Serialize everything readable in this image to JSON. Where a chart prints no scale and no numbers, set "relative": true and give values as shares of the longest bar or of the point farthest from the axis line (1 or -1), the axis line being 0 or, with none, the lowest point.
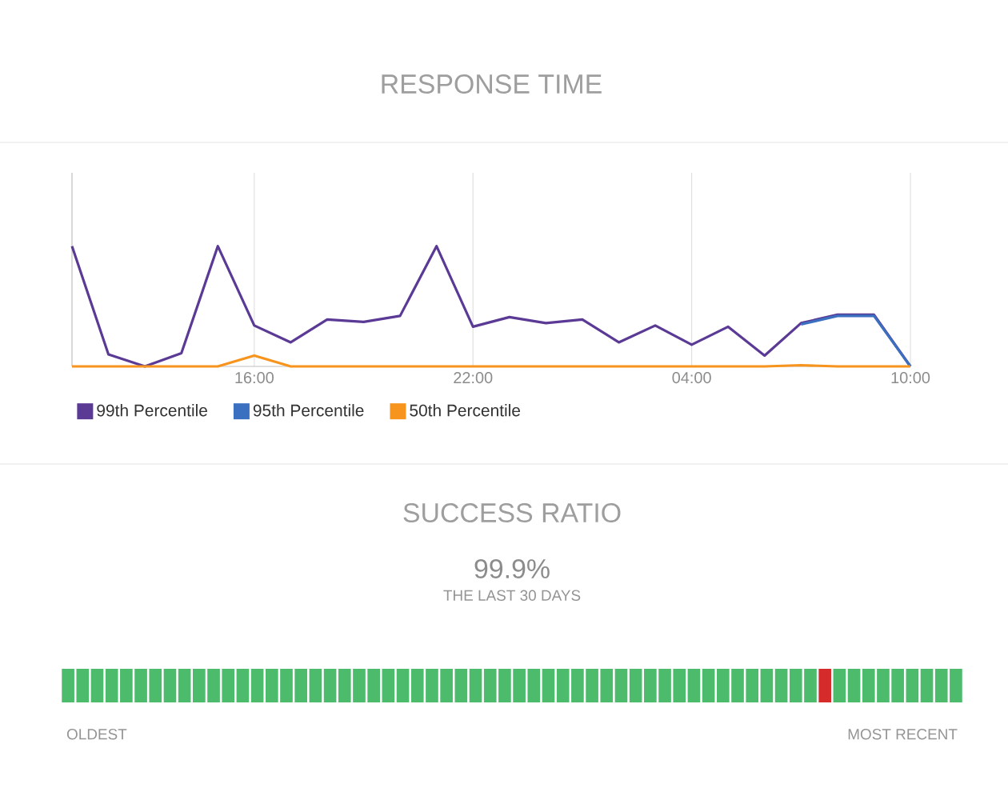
{
  "chart_data": [
    {
      "type": "line",
      "title": "RESPONSE TIME",
      "relative": true,
      "categories": [
        null,
        null,
        null,
        null,
        null,
        "16:00",
        null,
        null,
        null,
        null,
        null,
        "22:00",
        null,
        null,
        null,
        null,
        null,
        "04:00",
        null,
        null,
        null,
        null,
        null,
        "10:00"
      ],
      "tick_labels": "x",
      "grid": "x",
      "legend": "bottom",
      "series": [
        {
          "name": "99th Percentile",
          "color": "#5b3a96",
          "values": [
            1.0,
            0.1,
            0,
            0.11,
            1.0,
            0.34,
            0.2,
            0.39,
            0.37,
            0.42,
            1.0,
            0.33,
            0.41,
            0.36,
            0.39,
            0.2,
            0.34,
            0.18,
            0.33,
            0.09,
            0.36,
            0.43,
            0.43,
            0
          ]
        },
        {
          "name": "95th Percentile",
          "color": "#3b6fc0",
          "values": [
            null,
            null,
            null,
            null,
            null,
            null,
            null,
            null,
            null,
            null,
            null,
            null,
            null,
            null,
            null,
            null,
            null,
            null,
            null,
            null,
            0.35,
            0.42,
            0.42,
            0
          ]
        },
        {
          "name": "50th Percentile",
          "color": "#f7941d",
          "values": [
            0,
            0,
            0,
            0,
            0,
            0.09,
            0,
            0,
            0,
            0,
            0,
            0,
            0,
            0,
            0,
            0,
            0,
            0,
            0,
            0,
            0.01,
            0,
            0,
            0
          ]
        }
      ]
    },
    {
      "type": "bar",
      "title": "SUCCESS RATIO",
      "subtitle": "99.9%",
      "relative": true,
      "tick_labels": false,
      "annotations": [
        "THE LAST 30 DAYS",
        "OLDEST",
        "MOST RECENT"
      ],
      "categories": [
        null,
        null,
        null,
        null,
        null,
        null,
        null,
        null,
        null,
        null,
        null,
        null,
        null,
        null,
        null,
        null,
        null,
        null,
        null,
        null,
        null,
        null,
        null,
        null,
        null,
        null,
        null,
        null,
        null,
        null,
        null,
        null,
        null,
        null,
        null,
        null,
        null,
        null,
        null,
        null,
        null,
        null,
        null,
        null,
        null,
        null,
        null,
        null,
        null,
        null,
        null,
        null,
        null,
        null,
        null,
        null,
        null,
        null,
        null,
        null,
        null,
        null
      ],
      "values": [
        1,
        1,
        1,
        1,
        1,
        1,
        1,
        1,
        1,
        1,
        1,
        1,
        1,
        1,
        1,
        1,
        1,
        1,
        1,
        1,
        1,
        1,
        1,
        1,
        1,
        1,
        1,
        1,
        1,
        1,
        1,
        1,
        1,
        1,
        1,
        1,
        1,
        1,
        1,
        1,
        1,
        1,
        1,
        1,
        1,
        1,
        1,
        1,
        1,
        1,
        1,
        1,
        1,
        1,
        1,
        1,
        1,
        1,
        1,
        1,
        1,
        1
      ],
      "colors": [
        "#4cbb6c",
        "#4cbb6c",
        "#4cbb6c",
        "#4cbb6c",
        "#4cbb6c",
        "#4cbb6c",
        "#4cbb6c",
        "#4cbb6c",
        "#4cbb6c",
        "#4cbb6c",
        "#4cbb6c",
        "#4cbb6c",
        "#4cbb6c",
        "#4cbb6c",
        "#4cbb6c",
        "#4cbb6c",
        "#4cbb6c",
        "#4cbb6c",
        "#4cbb6c",
        "#4cbb6c",
        "#4cbb6c",
        "#4cbb6c",
        "#4cbb6c",
        "#4cbb6c",
        "#4cbb6c",
        "#4cbb6c",
        "#4cbb6c",
        "#4cbb6c",
        "#4cbb6c",
        "#4cbb6c",
        "#4cbb6c",
        "#4cbb6c",
        "#4cbb6c",
        "#4cbb6c",
        "#4cbb6c",
        "#4cbb6c",
        "#4cbb6c",
        "#4cbb6c",
        "#4cbb6c",
        "#4cbb6c",
        "#4cbb6c",
        "#4cbb6c",
        "#4cbb6c",
        "#4cbb6c",
        "#4cbb6c",
        "#4cbb6c",
        "#4cbb6c",
        "#4cbb6c",
        "#4cbb6c",
        "#4cbb6c",
        "#4cbb6c",
        "#4cbb6c",
        "#d62b2b",
        "#4cbb6c",
        "#4cbb6c",
        "#4cbb6c",
        "#4cbb6c",
        "#4cbb6c",
        "#4cbb6c",
        "#4cbb6c",
        "#4cbb6c",
        "#4cbb6c"
      ]
    }
  ]
}
